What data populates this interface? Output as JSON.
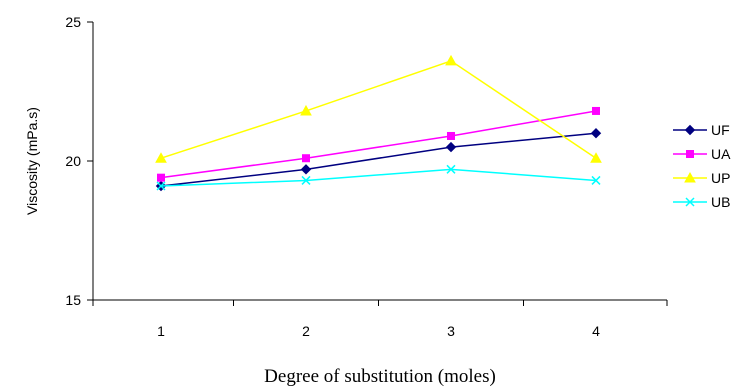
{
  "chart_data": {
    "type": "line",
    "title": "",
    "xlabel": "Degree of substitution (moles)",
    "ylabel": "Viscosity  (mPa.s)",
    "x": [
      1,
      2,
      3,
      4
    ],
    "x_tick_labels": [
      "1",
      "2",
      "3",
      "4"
    ],
    "ylim": [
      15,
      25
    ],
    "y_ticks": [
      15,
      20,
      25
    ],
    "y_tick_labels": [
      "15",
      "20",
      "25"
    ],
    "grid": false,
    "legend_position": "right",
    "series": [
      {
        "name": "UF",
        "values": [
          19.1,
          19.7,
          20.5,
          21.0
        ],
        "color": "#000080",
        "marker": "diamond"
      },
      {
        "name": "UA",
        "values": [
          19.4,
          20.1,
          20.9,
          21.8
        ],
        "color": "#FF00FF",
        "marker": "square"
      },
      {
        "name": "UP",
        "values": [
          20.1,
          21.8,
          23.6,
          20.1
        ],
        "color": "#FFFF00",
        "marker": "triangle"
      },
      {
        "name": "UB",
        "values": [
          19.1,
          19.3,
          19.7,
          19.3
        ],
        "color": "#00FFFF",
        "marker": "x"
      }
    ]
  }
}
